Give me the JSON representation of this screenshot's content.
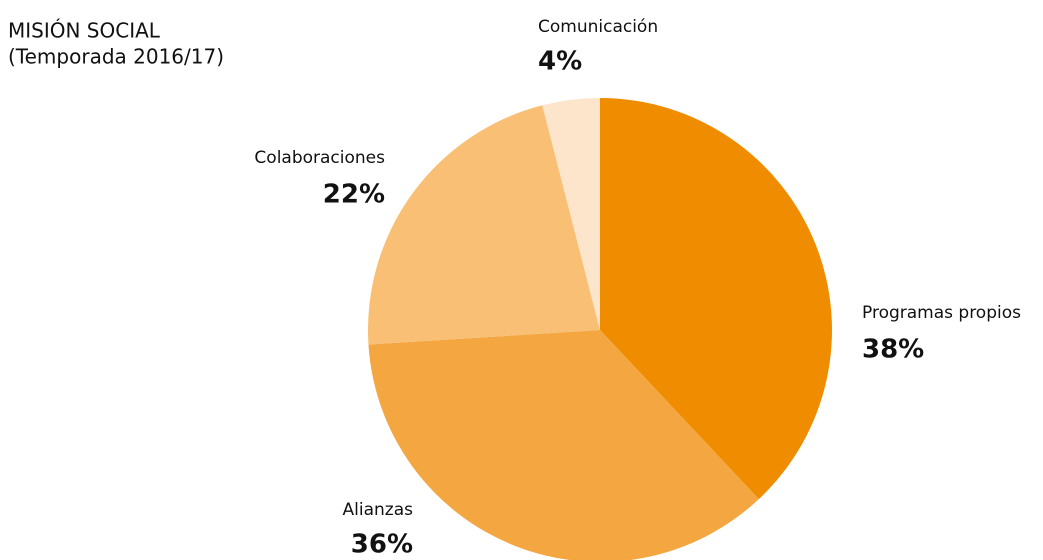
{
  "chart_data": {
    "type": "pie",
    "title": "MISIÓN SOCIAL",
    "subtitle": "(Temporada 2016/17)",
    "categories": [
      "Programas propios",
      "Alianzas",
      "Colaboraciones",
      "Comunicación"
    ],
    "values": [
      38,
      36,
      22,
      4
    ],
    "value_labels": [
      "38%",
      "36%",
      "22%",
      "4%"
    ],
    "colors": [
      "#f08c00",
      "#f4a641",
      "#f8bf75",
      "#fde5cc"
    ]
  }
}
